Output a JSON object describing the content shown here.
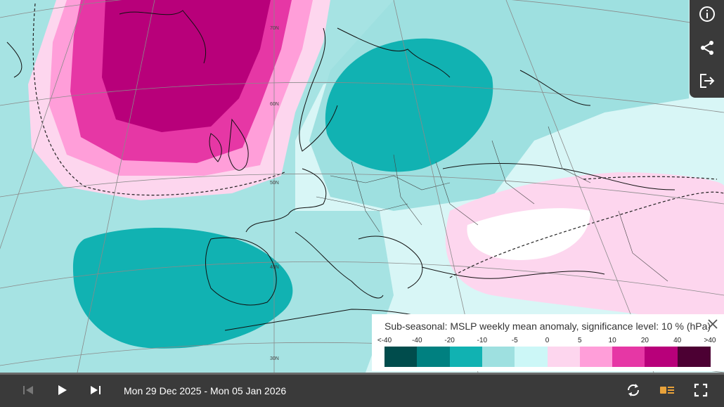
{
  "map": {
    "latitude_labels": [
      "70N",
      "60N",
      "50N",
      "40N",
      "30N"
    ],
    "colors": {
      "land_default": "#ccf7f7",
      "neg_light": "#9ee0e0",
      "neg_mid": "#11b2b2",
      "pos_light": "#fdd6ee",
      "pos_pink": "#ff9ed9",
      "pos_mid": "#e637a5",
      "pos_dark": "#b8007a"
    }
  },
  "toolbar": {
    "icons": [
      "info-icon",
      "share-icon",
      "export-icon"
    ]
  },
  "legend": {
    "title": "Sub-seasonal: MSLP weekly mean anomaly, significance level: 10 % (hPa)",
    "ticks": [
      "<-40",
      "-40",
      "-20",
      "-10",
      "-5",
      "0",
      "5",
      "10",
      "20",
      "40",
      ">40"
    ],
    "colors": [
      "#004c4c",
      "#008080",
      "#11b2b2",
      "#9ee0e0",
      "#ccf7f7",
      "#fdd6ee",
      "#ff9ed9",
      "#e637a5",
      "#b8007a",
      "#4c0033"
    ]
  },
  "controls": {
    "date_range": "Mon 29 Dec 2025 - Mon 05 Jan 2026",
    "icons": [
      "skip-back-icon",
      "play-icon",
      "skip-forward-icon",
      "loop-icon",
      "legend-toggle-icon",
      "fullscreen-icon"
    ]
  }
}
